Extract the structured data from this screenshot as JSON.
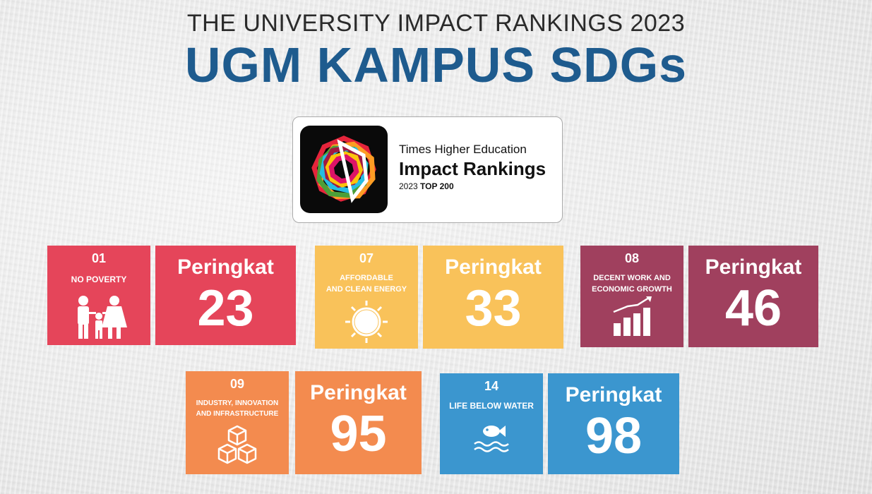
{
  "header": {
    "subtitle": "THE UNIVERSITY IMPACT RANKINGS 2023",
    "title": "UGM KAMPUS SDGs"
  },
  "badge": {
    "line1": "Times Higher Education",
    "line2": "Impact Rankings",
    "year": "2023",
    "tier": "TOP 200"
  },
  "goals": [
    {
      "number": "01",
      "name_line1": "NO POVERTY",
      "name_line2": "",
      "rank_label": "Peringkat",
      "rank": "23",
      "color": "#e5455a",
      "icon": "family-icon"
    },
    {
      "number": "07",
      "name_line1": "AFFORDABLE",
      "name_line2": "AND CLEAN ENERGY",
      "rank_label": "Peringkat",
      "rank": "33",
      "color": "#f9c25a",
      "icon": "sun-icon"
    },
    {
      "number": "08",
      "name_line1": "DECENT WORK AND",
      "name_line2": "ECONOMIC GROWTH",
      "rank_label": "Peringkat",
      "rank": "46",
      "color": "#a0405e",
      "icon": "growth-chart-icon"
    },
    {
      "number": "09",
      "name_line1": "INDUSTRY, INNOVATION",
      "name_line2": "AND INFRASTRUCTURE",
      "rank_label": "Peringkat",
      "rank": "95",
      "color": "#f38b4f",
      "icon": "cubes-icon"
    },
    {
      "number": "14",
      "name_line1": "LIFE BELOW WATER",
      "name_line2": "",
      "rank_label": "Peringkat",
      "rank": "98",
      "color": "#3b96cf",
      "icon": "fish-icon"
    }
  ]
}
